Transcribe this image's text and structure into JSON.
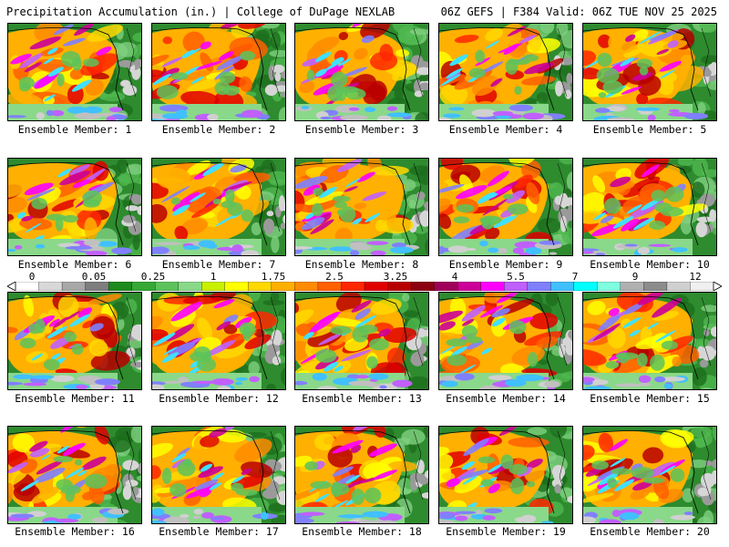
{
  "header": {
    "title": "Precipitation Accumulation (in.) | College of DuPage NEXLAB",
    "valid": "06Z GEFS | F384 Valid: 06Z TUE NOV 25 2025"
  },
  "members": [
    "Ensemble Member: 1",
    "Ensemble Member: 2",
    "Ensemble Member: 3",
    "Ensemble Member: 4",
    "Ensemble Member: 5",
    "Ensemble Member: 6",
    "Ensemble Member: 7",
    "Ensemble Member: 8",
    "Ensemble Member: 9",
    "Ensemble Member: 10",
    "Ensemble Member: 11",
    "Ensemble Member: 12",
    "Ensemble Member: 13",
    "Ensemble Member: 14",
    "Ensemble Member: 15",
    "Ensemble Member: 16",
    "Ensemble Member: 17",
    "Ensemble Member: 18",
    "Ensemble Member: 19",
    "Ensemble Member: 20"
  ],
  "colorbar": {
    "ticks": [
      "0",
      "0.05",
      "0.25",
      "1",
      "1.75",
      "2.5",
      "3.25",
      "4",
      "5.5",
      "7",
      "9",
      "12"
    ],
    "colors": [
      "#ffffff",
      "#d8d8d8",
      "#a8a8a8",
      "#7e7e7e",
      "#1e8a1e",
      "#35a835",
      "#5cc35c",
      "#8ad88a",
      "#c8f000",
      "#ffff00",
      "#ffd800",
      "#ffb000",
      "#ff8c00",
      "#ff6000",
      "#ff2800",
      "#e00000",
      "#b80000",
      "#8c0010",
      "#a0005a",
      "#cc0099",
      "#ff00ff",
      "#c060ff",
      "#8080ff",
      "#40c0ff",
      "#00ffff",
      "#80ffe0",
      "#b0b0b0",
      "#8c8c8c",
      "#d0d0d0",
      "#f0f0f0"
    ]
  }
}
